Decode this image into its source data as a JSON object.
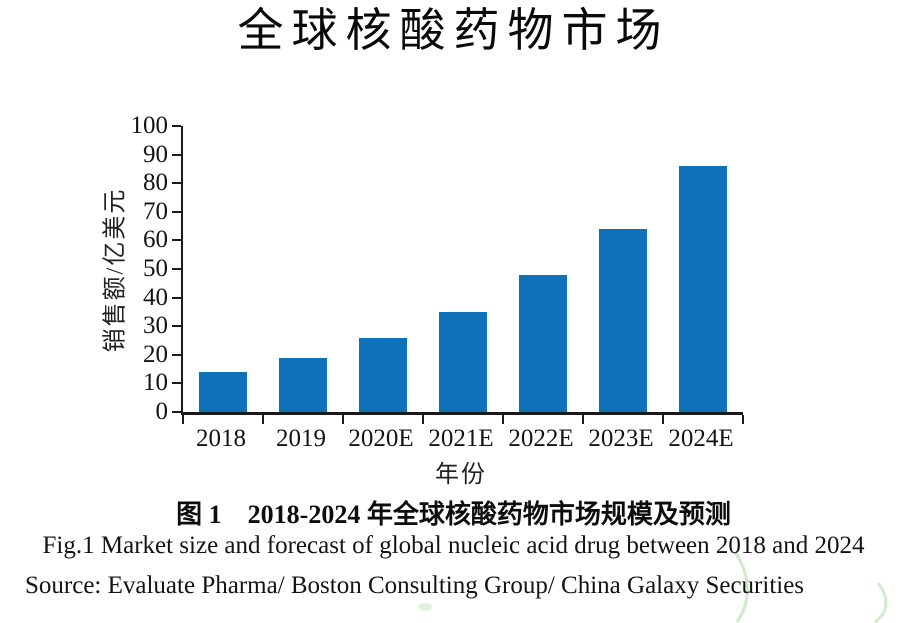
{
  "page": {
    "title": "全球核酸药物市场",
    "caption_cn": "图 1　2018-2024 年全球核酸药物市场规模及预测",
    "caption_en": "Fig.1 Market size and forecast of global nucleic acid drug between 2018 and 2024",
    "source": "Source: Evaluate Pharma/ Boston Consulting Group/ China Galaxy Securities"
  },
  "chart_data": {
    "type": "bar",
    "title": "全球核酸药物市场",
    "categories": [
      "2018",
      "2019",
      "2020E",
      "2021E",
      "2022E",
      "2023E",
      "2024E"
    ],
    "values": [
      14,
      19,
      26,
      35,
      48,
      64,
      86
    ],
    "xlabel": "年份",
    "ylabel": "销售额/亿美元",
    "ylim": [
      0,
      100
    ],
    "ytick_step": 10,
    "yticks": [
      0,
      10,
      20,
      30,
      40,
      50,
      60,
      70,
      80,
      90,
      100
    ],
    "grid": false,
    "legend_position": "none",
    "bar_color": "#0d72b9"
  },
  "colors": {
    "bar": "#0d72b9",
    "axis": "#1a1a1a",
    "text": "#141414",
    "watermark_green": "#a5d8a0"
  }
}
